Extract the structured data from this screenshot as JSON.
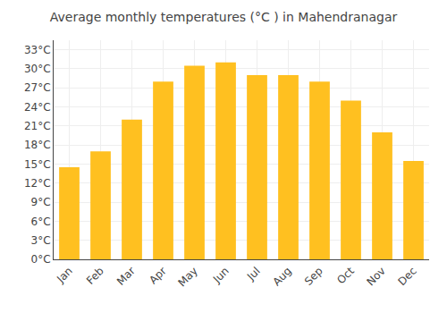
{
  "chart_data": {
    "type": "bar",
    "title": "Average monthly temperatures (°C ) in Mahendranagar",
    "categories": [
      "Jan",
      "Feb",
      "Mar",
      "Apr",
      "May",
      "Jun",
      "Jul",
      "Aug",
      "Sep",
      "Oct",
      "Nov",
      "Dec"
    ],
    "values": [
      14.5,
      17.0,
      22.0,
      28.0,
      30.5,
      31.0,
      29.0,
      29.0,
      28.0,
      25.0,
      20.0,
      15.5
    ],
    "color": "#FFC020",
    "ylim": [
      0,
      34.5
    ],
    "yticks": [
      {
        "value": 0,
        "label": "0°C"
      },
      {
        "value": 3,
        "label": "3°C"
      },
      {
        "value": 6,
        "label": "6°C"
      },
      {
        "value": 9,
        "label": "9°C"
      },
      {
        "value": 12,
        "label": "12°C"
      },
      {
        "value": 15,
        "label": "15°C"
      },
      {
        "value": 18,
        "label": "18°C"
      },
      {
        "value": 21,
        "label": "21°C"
      },
      {
        "value": 24,
        "label": "24°C"
      },
      {
        "value": 27,
        "label": "27°C"
      },
      {
        "value": 30,
        "label": "30°C"
      },
      {
        "value": 33,
        "label": "33°C"
      }
    ],
    "grid": true
  }
}
